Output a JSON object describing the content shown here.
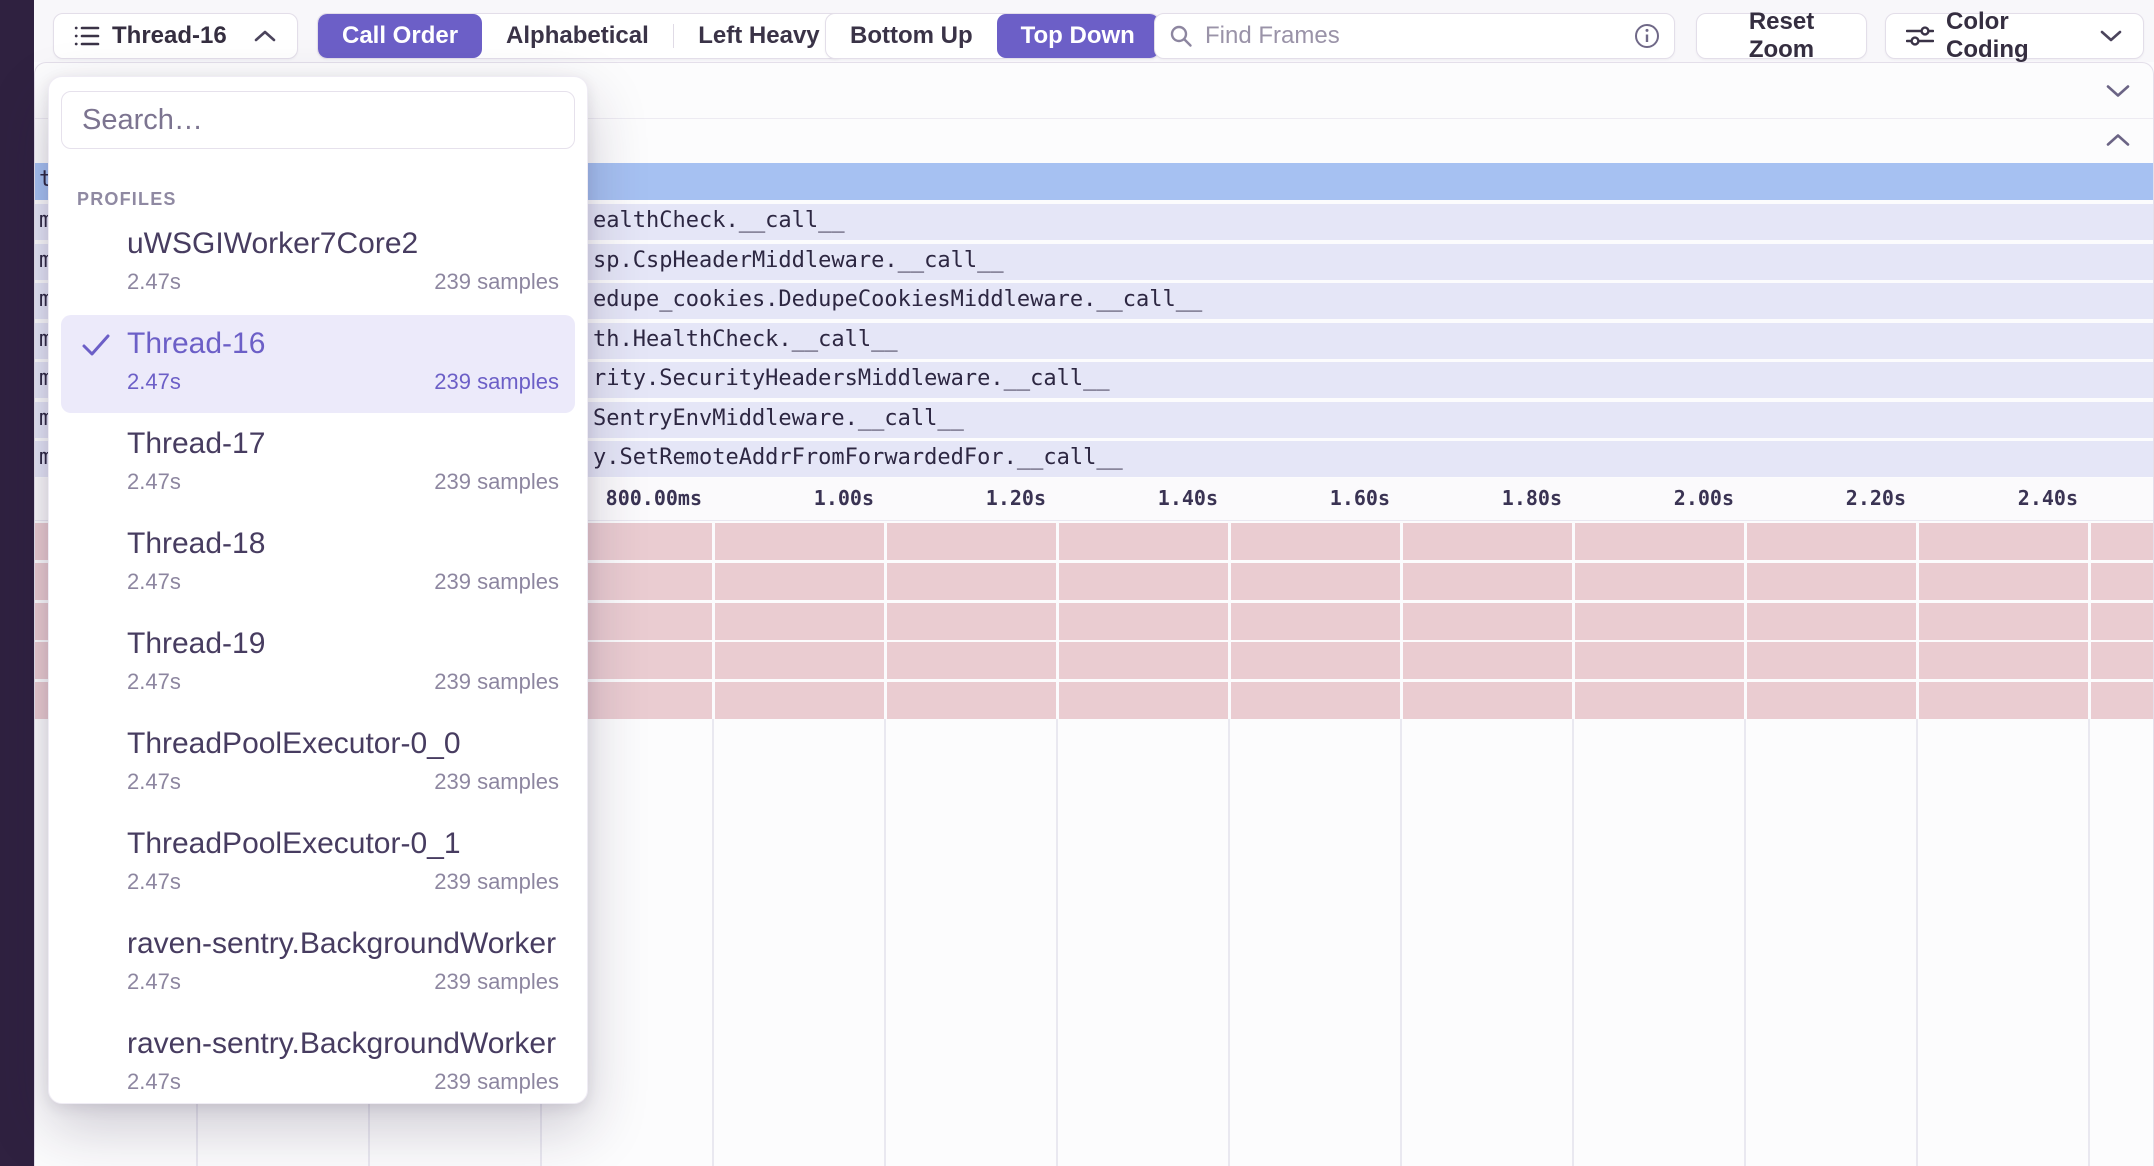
{
  "toolbar": {
    "thread_selector_label": "Thread-16",
    "sort_options": [
      "Call Order",
      "Alphabetical",
      "Left Heavy"
    ],
    "sort_active": "Call Order",
    "view_options": [
      "Bottom Up",
      "Top Down"
    ],
    "view_active": "Top Down",
    "find_frames_placeholder": "Find Frames",
    "reset_zoom_label": "Reset Zoom",
    "color_coding_label": "Color Coding"
  },
  "thread_dropdown": {
    "search_placeholder": "Search…",
    "section_label": "PROFILES",
    "items": [
      {
        "name": "uWSGIWorker7Core2",
        "duration": "2.47s",
        "samples": "239 samples",
        "selected": false
      },
      {
        "name": "Thread-16",
        "duration": "2.47s",
        "samples": "239 samples",
        "selected": true
      },
      {
        "name": "Thread-17",
        "duration": "2.47s",
        "samples": "239 samples",
        "selected": false
      },
      {
        "name": "Thread-18",
        "duration": "2.47s",
        "samples": "239 samples",
        "selected": false
      },
      {
        "name": "Thread-19",
        "duration": "2.47s",
        "samples": "239 samples",
        "selected": false
      },
      {
        "name": "ThreadPoolExecutor-0_0",
        "duration": "2.47s",
        "samples": "239 samples",
        "selected": false
      },
      {
        "name": "ThreadPoolExecutor-0_1",
        "duration": "2.47s",
        "samples": "239 samples",
        "selected": false
      },
      {
        "name": "raven-sentry.BackgroundWorker",
        "duration": "2.47s",
        "samples": "239 samples",
        "selected": false
      },
      {
        "name": "raven-sentry.BackgroundWorker",
        "duration": "2.47s",
        "samples": "239 samples",
        "selected": false
      }
    ]
  },
  "flamegraph": {
    "root_row": {
      "left_letter": "t"
    },
    "frame_rows": [
      {
        "left_letter": "m",
        "visible_text": "ealthCheck.__call__"
      },
      {
        "left_letter": "m",
        "visible_text": "sp.CspHeaderMiddleware.__call__"
      },
      {
        "left_letter": "m",
        "visible_text": "edupe_cookies.DedupeCookiesMiddleware.__call__"
      },
      {
        "left_letter": "m",
        "visible_text": "th.HealthCheck.__call__"
      },
      {
        "left_letter": "m",
        "visible_text": "rity.SecurityHeadersMiddleware.__call__"
      },
      {
        "left_letter": "m",
        "visible_text": "SentryEnvMiddleware.__call__"
      },
      {
        "left_letter": "m",
        "visible_text": "y.SetRemoteAddrFromForwardedFor.__call__"
      }
    ],
    "time_axis_labels": [
      "800.00ms",
      "1.00s",
      "1.20s",
      "1.40s",
      "1.60s",
      "1.80s",
      "2.00s",
      "2.20s",
      "2.40s"
    ],
    "sleeping_row_count": 5,
    "colors": {
      "accent": "#6C5FC7",
      "root_row": "#a6c1f2",
      "frame_row": "#e5e6f7",
      "sleeping_row": "#eaccd1",
      "sidebar": "#2f2140"
    }
  }
}
